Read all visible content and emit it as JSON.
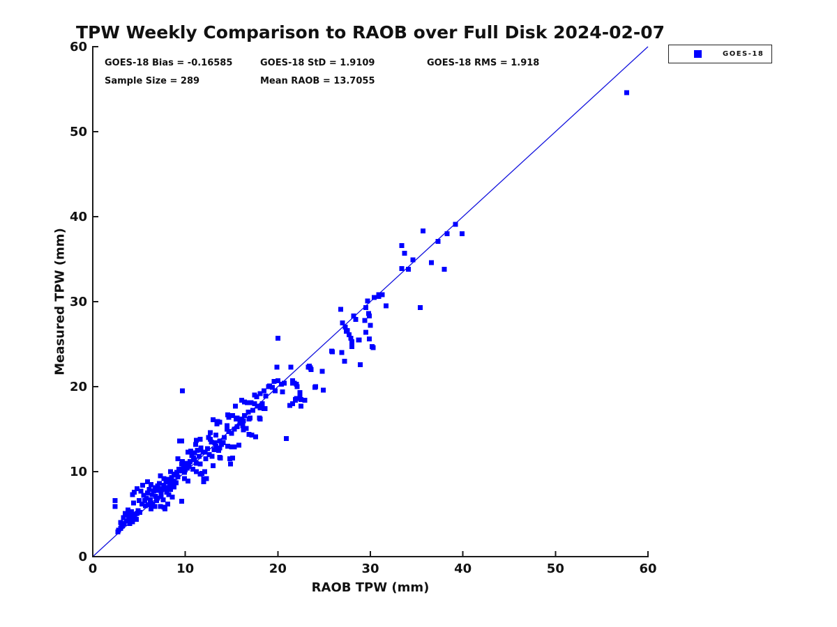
{
  "chart_data": {
    "type": "scatter",
    "title": "TPW Weekly Comparison to RAOB over Full Disk 2024-02-07",
    "xlabel": "RAOB TPW (mm)",
    "ylabel": "Measured TPW (mm)",
    "xlim": [
      0,
      60
    ],
    "ylim": [
      0,
      60
    ],
    "x_ticks": [
      0,
      10,
      20,
      30,
      40,
      50,
      60
    ],
    "y_ticks": [
      0,
      10,
      20,
      30,
      40,
      50,
      60
    ],
    "grid": false,
    "legend_position": "top-right-outside",
    "axis_color": "#1a1a1a",
    "stats_display": {
      "bias": "GOES-18 Bias = -0.16585",
      "std": "GOES-18 StD = 1.9109",
      "rms": "GOES-18 RMS = 1.918",
      "sample_size": "Sample Size = 289",
      "mean_raob": "Mean RAOB = 13.7055"
    },
    "stats_values": {
      "bias": -0.16585,
      "std": 1.9109,
      "rms": 1.918,
      "sample_size": 289,
      "mean_raob": 13.7055
    },
    "ref_line": {
      "from": [
        0,
        0
      ],
      "to": [
        60,
        60
      ],
      "color": "#1111dd"
    },
    "series": [
      {
        "name": "GOES-18",
        "marker": "square",
        "marker_size": 7,
        "color": "#0000ff",
        "points": [
          [
            2.4,
            6.6
          ],
          [
            2.4,
            5.9
          ],
          [
            2.7,
            2.9
          ],
          [
            2.8,
            3.1
          ],
          [
            3.0,
            3.3
          ],
          [
            3.1,
            3.7
          ],
          [
            3.0,
            4.0
          ],
          [
            3.2,
            3.6
          ],
          [
            3.4,
            3.9
          ],
          [
            3.3,
            4.6
          ],
          [
            3.5,
            5.1
          ],
          [
            3.8,
            5.5
          ],
          [
            3.6,
            4.2
          ],
          [
            3.7,
            4.9
          ],
          [
            3.9,
            4.7
          ],
          [
            4.0,
            3.9
          ],
          [
            4.1,
            4.4
          ],
          [
            4.2,
            5.3
          ],
          [
            4.3,
            4.1
          ],
          [
            4.4,
            4.8
          ],
          [
            4.5,
            4.5
          ],
          [
            4.6,
            5.0
          ],
          [
            4.7,
            4.4
          ],
          [
            4.8,
            5.1
          ],
          [
            4.9,
            5.4
          ],
          [
            5.1,
            5.2
          ],
          [
            4.3,
            7.3
          ],
          [
            4.4,
            6.3
          ],
          [
            4.5,
            7.6
          ],
          [
            4.8,
            8.0
          ],
          [
            5.0,
            6.6
          ],
          [
            5.2,
            7.7
          ],
          [
            5.3,
            6.2
          ],
          [
            5.4,
            8.4
          ],
          [
            5.5,
            7.2
          ],
          [
            5.6,
            6.6
          ],
          [
            5.7,
            6.0
          ],
          [
            5.8,
            6.9
          ],
          [
            5.9,
            8.8
          ],
          [
            5.9,
            7.5
          ],
          [
            6.0,
            6.1
          ],
          [
            6.1,
            7.9
          ],
          [
            6.2,
            6.7
          ],
          [
            6.3,
            8.5
          ],
          [
            6.3,
            5.6
          ],
          [
            6.4,
            7.3
          ],
          [
            6.5,
            6.2
          ],
          [
            6.6,
            7.7
          ],
          [
            6.7,
            5.9
          ],
          [
            6.8,
            7.1
          ],
          [
            6.7,
            8.1
          ],
          [
            6.9,
            6.6
          ],
          [
            7.0,
            6.9
          ],
          [
            7.0,
            8.3
          ],
          [
            7.1,
            7.8
          ],
          [
            7.2,
            8.6
          ],
          [
            7.3,
            5.9
          ],
          [
            7.3,
            9.5
          ],
          [
            7.4,
            7.6
          ],
          [
            7.4,
            7.1
          ],
          [
            7.5,
            8.0
          ],
          [
            7.6,
            6.7
          ],
          [
            7.7,
            5.8
          ],
          [
            7.7,
            8.4
          ],
          [
            7.7,
            9.2
          ],
          [
            7.8,
            5.6
          ],
          [
            7.9,
            8.8
          ],
          [
            8.0,
            7.6
          ],
          [
            8.0,
            8.1
          ],
          [
            8.1,
            6.2
          ],
          [
            8.1,
            9.1
          ],
          [
            8.2,
            7.3
          ],
          [
            8.2,
            8.8
          ],
          [
            8.3,
            8.5
          ],
          [
            8.4,
            7.9
          ],
          [
            8.4,
            10.0
          ],
          [
            8.5,
            9.3
          ],
          [
            8.6,
            7.0
          ],
          [
            8.6,
            8.3
          ],
          [
            8.7,
            8.9
          ],
          [
            8.8,
            8.2
          ],
          [
            8.8,
            9.7
          ],
          [
            8.9,
            9.6
          ],
          [
            9.0,
            8.7
          ],
          [
            9.2,
            9.4
          ],
          [
            9.6,
            6.5
          ],
          [
            9.1,
            9.9
          ],
          [
            9.2,
            11.5
          ],
          [
            9.3,
            10.3
          ],
          [
            9.4,
            13.6
          ],
          [
            9.5,
            10.1
          ],
          [
            9.6,
            10.9
          ],
          [
            9.6,
            13.6
          ],
          [
            9.7,
            11.2
          ],
          [
            9.7,
            19.5
          ],
          [
            9.8,
            10.5
          ],
          [
            9.9,
            9.2
          ],
          [
            9.9,
            9.9
          ],
          [
            10.0,
            10.2
          ],
          [
            10.1,
            10.7
          ],
          [
            10.1,
            11.0
          ],
          [
            10.2,
            10.4
          ],
          [
            10.3,
            8.9
          ],
          [
            10.3,
            12.3
          ],
          [
            10.4,
            10.6
          ],
          [
            10.5,
            11.2
          ],
          [
            10.6,
            12.4
          ],
          [
            10.7,
            11.9
          ],
          [
            10.8,
            10.3
          ],
          [
            10.9,
            11.6
          ],
          [
            11.0,
            11.4
          ],
          [
            11.0,
            12.2
          ],
          [
            11.1,
            13.2
          ],
          [
            11.2,
            10.0
          ],
          [
            11.2,
            11.0
          ],
          [
            11.2,
            13.7
          ],
          [
            11.3,
            12.5
          ],
          [
            11.5,
            11.8
          ],
          [
            11.6,
            9.7
          ],
          [
            11.6,
            10.9
          ],
          [
            11.6,
            13.8
          ],
          [
            11.7,
            12.8
          ],
          [
            11.7,
            12.6
          ],
          [
            11.8,
            9.8
          ],
          [
            11.9,
            12.3
          ],
          [
            12.0,
            9.2
          ],
          [
            12.0,
            8.8
          ],
          [
            12.1,
            10.0
          ],
          [
            12.1,
            12.3
          ],
          [
            12.2,
            11.5
          ],
          [
            12.3,
            9.2
          ],
          [
            12.4,
            12.7
          ],
          [
            12.6,
            12.0
          ],
          [
            12.8,
            13.5
          ],
          [
            12.9,
            11.8
          ],
          [
            12.5,
            14.0
          ],
          [
            12.7,
            13.8
          ],
          [
            12.7,
            14.6
          ],
          [
            13.0,
            10.7
          ],
          [
            13.0,
            16.1
          ],
          [
            13.1,
            12.6
          ],
          [
            13.2,
            13.4
          ],
          [
            13.3,
            13.0
          ],
          [
            13.3,
            14.3
          ],
          [
            13.4,
            15.6
          ],
          [
            13.5,
            15.9
          ],
          [
            13.6,
            12.5
          ],
          [
            13.7,
            11.7
          ],
          [
            13.7,
            13.6
          ],
          [
            13.7,
            15.8
          ],
          [
            13.7,
            12.8
          ],
          [
            13.8,
            11.6
          ],
          [
            13.9,
            13.2
          ],
          [
            14.1,
            13.4
          ],
          [
            14.2,
            14.0
          ],
          [
            14.5,
            15.0
          ],
          [
            14.5,
            15.4
          ],
          [
            14.6,
            13.0
          ],
          [
            14.6,
            16.7
          ],
          [
            14.7,
            14.7
          ],
          [
            14.7,
            16.4
          ],
          [
            14.8,
            11.5
          ],
          [
            14.9,
            10.9
          ],
          [
            15.0,
            12.9
          ],
          [
            15.0,
            14.5
          ],
          [
            15.1,
            11.6
          ],
          [
            15.1,
            16.6
          ],
          [
            15.3,
            12.9
          ],
          [
            15.3,
            15.0
          ],
          [
            15.4,
            17.7
          ],
          [
            15.5,
            16.2
          ],
          [
            15.6,
            15.3
          ],
          [
            15.6,
            16.3
          ],
          [
            15.8,
            13.1
          ],
          [
            15.9,
            15.7
          ],
          [
            16.0,
            16.2
          ],
          [
            16.1,
            15.9
          ],
          [
            16.1,
            18.4
          ],
          [
            16.2,
            15.4
          ],
          [
            16.3,
            14.9
          ],
          [
            16.3,
            16.0
          ],
          [
            16.4,
            16.6
          ],
          [
            16.4,
            18.2
          ],
          [
            16.6,
            15.1
          ],
          [
            16.7,
            18.1
          ],
          [
            16.9,
            14.4
          ],
          [
            16.9,
            16.2
          ],
          [
            17.0,
            16.3
          ],
          [
            16.8,
            17.0
          ],
          [
            17.1,
            18.1
          ],
          [
            17.2,
            14.3
          ],
          [
            17.3,
            17.2
          ],
          [
            17.5,
            18.0
          ],
          [
            17.5,
            19.0
          ],
          [
            17.6,
            14.1
          ],
          [
            17.7,
            18.8
          ],
          [
            17.8,
            17.7
          ],
          [
            18.0,
            16.3
          ],
          [
            18.1,
            16.2
          ],
          [
            18.1,
            17.5
          ],
          [
            18.1,
            19.2
          ],
          [
            18.3,
            18.0
          ],
          [
            18.5,
            17.4
          ],
          [
            18.5,
            19.5
          ],
          [
            18.6,
            17.4
          ],
          [
            18.7,
            18.9
          ],
          [
            19.0,
            20.0
          ],
          [
            19.1,
            20.1
          ],
          [
            19.4,
            19.9
          ],
          [
            19.6,
            20.6
          ],
          [
            19.7,
            19.5
          ],
          [
            19.9,
            22.3
          ],
          [
            20.0,
            20.7
          ],
          [
            20.0,
            25.7
          ],
          [
            20.4,
            20.3
          ],
          [
            20.5,
            19.4
          ],
          [
            20.7,
            20.4
          ],
          [
            20.9,
            13.9
          ],
          [
            21.3,
            17.8
          ],
          [
            21.4,
            22.3
          ],
          [
            21.6,
            18.0
          ],
          [
            21.6,
            20.4
          ],
          [
            21.6,
            20.7
          ],
          [
            21.8,
            20.4
          ],
          [
            21.9,
            18.4
          ],
          [
            21.9,
            18.5
          ],
          [
            22.0,
            18.6
          ],
          [
            22.0,
            20.3
          ],
          [
            22.1,
            20.0
          ],
          [
            22.4,
            19.0
          ],
          [
            22.4,
            19.3
          ],
          [
            22.5,
            17.7
          ],
          [
            22.5,
            18.5
          ],
          [
            22.9,
            18.4
          ],
          [
            23.3,
            22.3
          ],
          [
            23.4,
            22.4
          ],
          [
            23.5,
            22.2
          ],
          [
            23.6,
            22.0
          ],
          [
            24.0,
            19.9
          ],
          [
            24.8,
            21.8
          ],
          [
            24.9,
            19.6
          ],
          [
            24.1,
            20.0
          ],
          [
            25.8,
            24.2
          ],
          [
            25.9,
            24.1
          ],
          [
            26.8,
            29.1
          ],
          [
            26.9,
            24.0
          ],
          [
            27.0,
            27.5
          ],
          [
            27.2,
            23.0
          ],
          [
            27.3,
            27.0
          ],
          [
            27.4,
            26.5
          ],
          [
            27.5,
            26.6
          ],
          [
            27.7,
            26.1
          ],
          [
            27.9,
            25.7
          ],
          [
            28.0,
            25.3
          ],
          [
            28.0,
            24.7
          ],
          [
            28.2,
            28.3
          ],
          [
            28.4,
            27.9
          ],
          [
            28.7,
            25.5
          ],
          [
            28.8,
            25.5
          ],
          [
            28.9,
            22.6
          ],
          [
            29.4,
            27.8
          ],
          [
            29.5,
            26.4
          ],
          [
            29.5,
            29.3
          ],
          [
            29.7,
            30.1
          ],
          [
            29.8,
            28.6
          ],
          [
            29.9,
            25.6
          ],
          [
            29.9,
            28.3
          ],
          [
            30.0,
            27.2
          ],
          [
            30.2,
            24.7
          ],
          [
            30.3,
            24.6
          ],
          [
            30.4,
            30.5
          ],
          [
            30.9,
            30.6
          ],
          [
            30.9,
            30.8
          ],
          [
            31.3,
            30.8
          ],
          [
            31.7,
            29.5
          ],
          [
            33.4,
            33.9
          ],
          [
            33.4,
            36.6
          ],
          [
            33.7,
            35.7
          ],
          [
            34.1,
            33.8
          ],
          [
            34.6,
            34.9
          ],
          [
            35.4,
            29.3
          ],
          [
            35.7,
            38.3
          ],
          [
            36.6,
            34.6
          ],
          [
            37.3,
            37.1
          ],
          [
            38.0,
            33.8
          ],
          [
            38.3,
            38.0
          ],
          [
            39.2,
            39.1
          ],
          [
            39.9,
            38.0
          ],
          [
            57.7,
            54.6
          ]
        ]
      }
    ]
  }
}
